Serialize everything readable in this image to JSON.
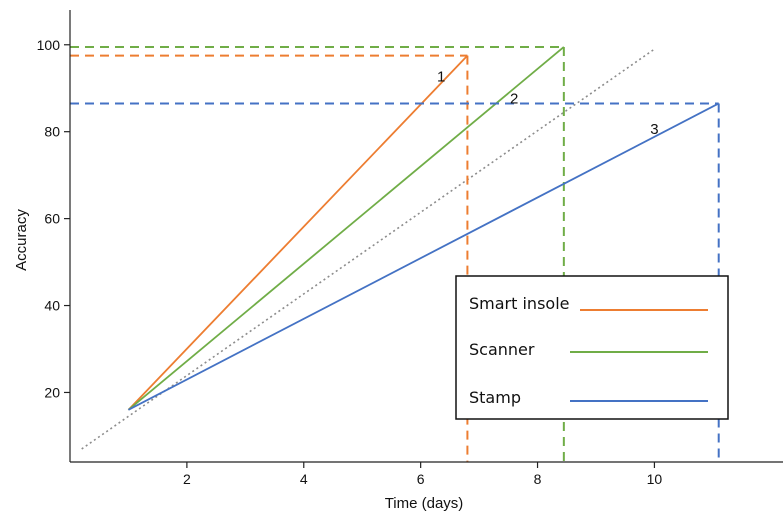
{
  "chart_data": {
    "type": "line",
    "xlabel": "Time (days)",
    "ylabel": "Accuracy",
    "xlim": [
      0,
      12.2
    ],
    "ylim": [
      4,
      108
    ],
    "x_ticks": [
      2,
      4,
      6,
      8,
      10
    ],
    "y_ticks": [
      20,
      40,
      60,
      80,
      100
    ],
    "grid": false,
    "legend_position": "lower-right",
    "series": [
      {
        "name": "Smart insole",
        "label": "1",
        "color": "#ED7D31",
        "x": [
          1.0,
          6.8
        ],
        "y": [
          16,
          97.5
        ]
      },
      {
        "name": "Scanner",
        "label": "2",
        "color": "#70AD47",
        "x": [
          1.0,
          8.45
        ],
        "y": [
          16,
          99.5
        ]
      },
      {
        "name": "Stamp",
        "label": "3",
        "color": "#4472C4",
        "x": [
          1.0,
          11.1
        ],
        "y": [
          16,
          86.5
        ]
      }
    ],
    "reference_line": {
      "color": "#8c8c8c",
      "x": [
        0.2,
        10.0
      ],
      "y": [
        7,
        99
      ]
    },
    "number_label_positions": [
      {
        "series": 0,
        "x": 6.35,
        "y": 91.5
      },
      {
        "series": 1,
        "x": 7.6,
        "y": 86.5
      },
      {
        "series": 2,
        "x": 10.0,
        "y": 79.5
      }
    ]
  }
}
